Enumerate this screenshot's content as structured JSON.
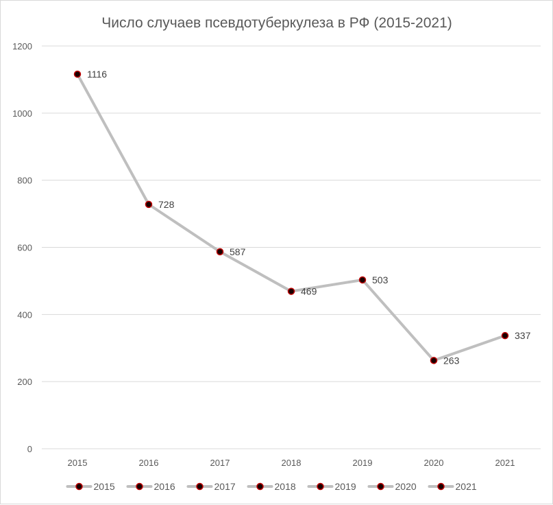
{
  "chart_data": {
    "type": "line",
    "title": "Число случаев псевдотуберкулеза  в РФ (2015-2021)",
    "categories": [
      "2015",
      "2016",
      "2017",
      "2018",
      "2019",
      "2020",
      "2021"
    ],
    "series": [
      {
        "values": [
          1116,
          728,
          587,
          469,
          503,
          263,
          337
        ]
      }
    ],
    "data_labels": [
      "1116",
      "728",
      "587",
      "469",
      "503",
      "263",
      "337"
    ],
    "y_ticks": [
      "0",
      "200",
      "400",
      "600",
      "800",
      "1000",
      "1200"
    ],
    "ylim": [
      0,
      1200
    ],
    "legend": {
      "placement": "bottom",
      "entries": [
        "2015",
        "2016",
        "2017",
        "2018",
        "2019",
        "2020",
        "2021"
      ]
    },
    "grid": true,
    "colors": {
      "line": "#bfbfbf",
      "marker_fill": "#1a0000",
      "marker_stroke": "#c00000",
      "gridline": "#d9d9d9",
      "text": "#595959"
    }
  }
}
